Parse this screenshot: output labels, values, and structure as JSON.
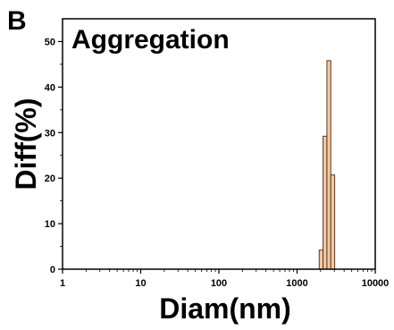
{
  "panel_label": "B",
  "chart_data": {
    "type": "bar",
    "title": "Aggregation",
    "xlabel": "Diam(nm)",
    "ylabel": "Diff(%)",
    "x_scale": "log",
    "xlim": [
      1,
      10000
    ],
    "ylim": [
      0,
      55
    ],
    "x_ticks": [
      1,
      10,
      100,
      1000,
      10000
    ],
    "x_tick_labels": [
      "1",
      "10",
      "100",
      "1000",
      "10000"
    ],
    "y_ticks": [
      0,
      10,
      20,
      30,
      40,
      50
    ],
    "y_tick_labels": [
      "0",
      "10",
      "20",
      "30",
      "40",
      "50"
    ],
    "grid": false,
    "legend": "none",
    "bar_color": "#f5c9a1",
    "bar_edge_color": "#5a3a28",
    "bins": [
      {
        "x_start": 1920,
        "x_end": 2150,
        "value": 4.2
      },
      {
        "x_start": 2150,
        "x_end": 2410,
        "value": 29.2
      },
      {
        "x_start": 2410,
        "x_end": 2700,
        "value": 45.8
      },
      {
        "x_start": 2700,
        "x_end": 3030,
        "value": 20.7
      }
    ]
  }
}
